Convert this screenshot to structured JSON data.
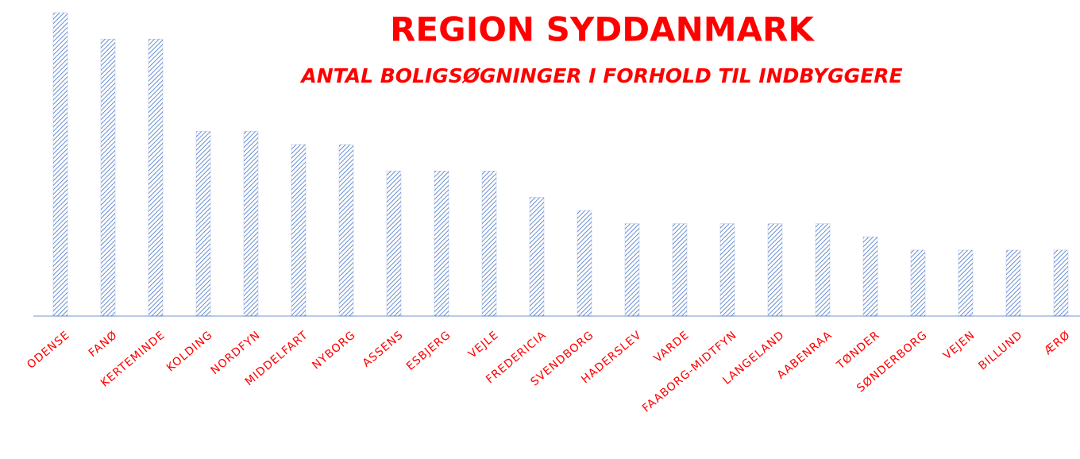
{
  "chart_data": {
    "type": "bar",
    "title": "REGION SYDDANMARK",
    "subtitle": "ANTAL BOLIGSØGNINGER I FORHOLD TIL INDBYGGERE",
    "categories": [
      "ODENSE",
      "FANØ",
      "KERTEMINDE",
      "KOLDING",
      "NORDFYN",
      "MIDDELFART",
      "NYBORG",
      "ASSENS",
      "ESBJERG",
      "VEJLE",
      "FREDERICIA",
      "SVENDBORG",
      "HADERSLEV",
      "VARDE",
      "FAABORG-MIDTFYN",
      "LANGELAND",
      "AABENRAA",
      "TØNDER",
      "SØNDERBORG",
      "VEJEN",
      "BILLUND",
      "ÆRØ"
    ],
    "values": [
      23,
      21,
      21,
      14,
      14,
      13,
      13,
      11,
      11,
      11,
      9,
      8,
      7,
      7,
      7,
      7,
      7,
      6,
      5,
      5,
      5,
      5
    ],
    "color": "#4472c4"
  }
}
